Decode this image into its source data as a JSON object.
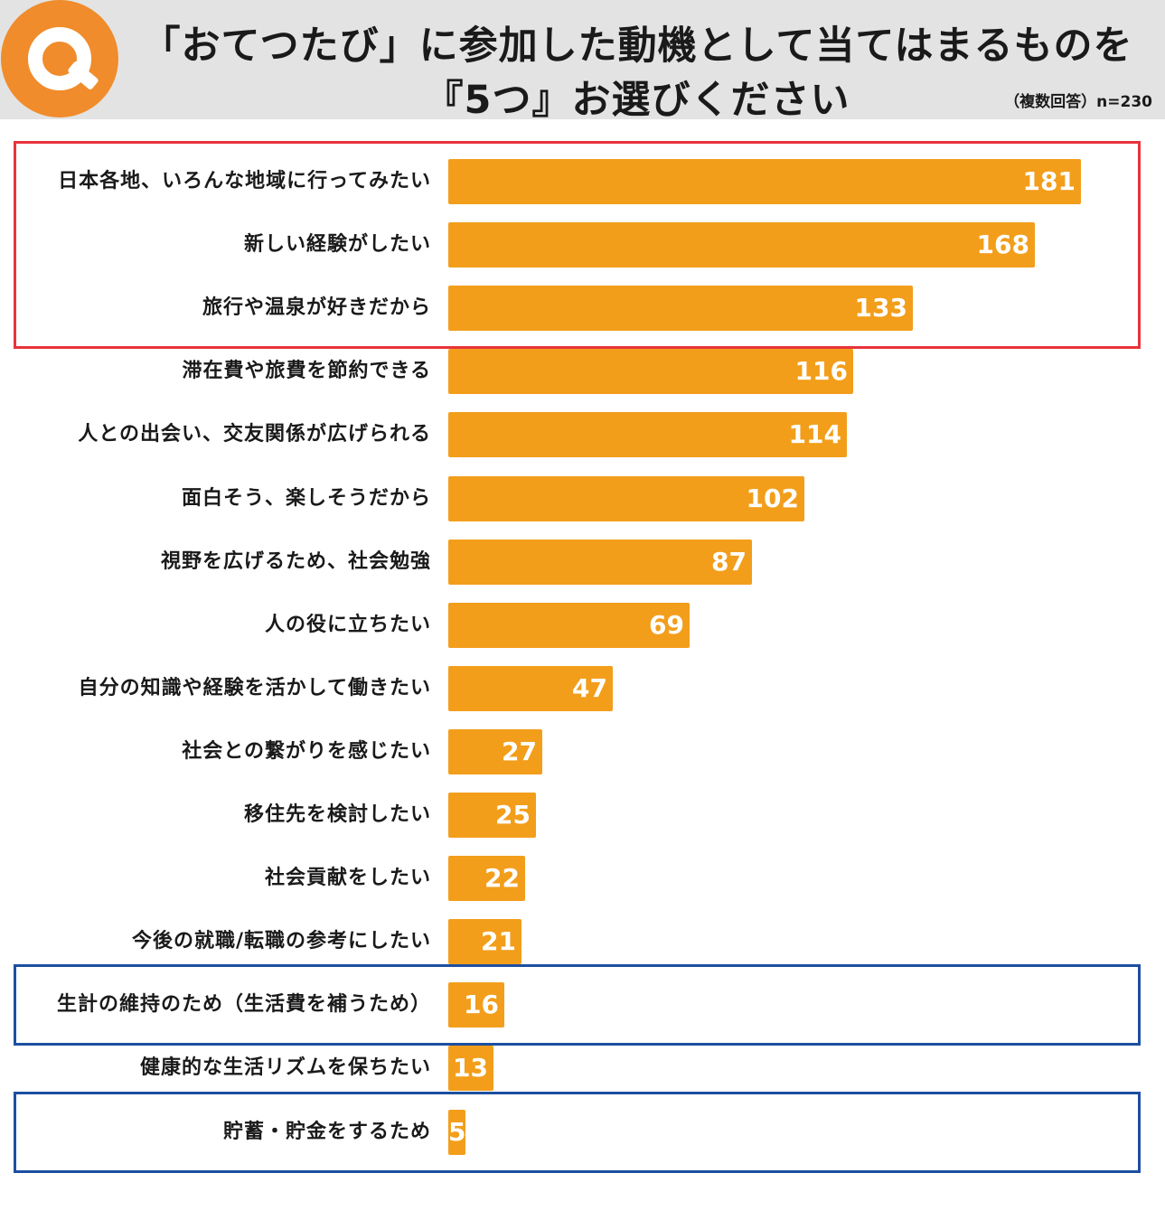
{
  "header": {
    "q_badge": "Q",
    "title_line1": "「おてつたび」に参加した動機として当てはまるものを",
    "title_line2": "『5つ』お選びください",
    "note": "（複数回答）n=230",
    "badge_color": "#f08c2b"
  },
  "chart_data": {
    "type": "bar",
    "orientation": "horizontal",
    "categories": [
      "日本各地、いろんな地域に行ってみたい",
      "新しい経験がしたい",
      "旅行や温泉が好きだから",
      "滞在費や旅費を節約できる",
      "人との出会い、交友関係が広げられる",
      "面白そう、楽しそうだから",
      "視野を広げるため、社会勉強",
      "人の役に立ちたい",
      "自分の知識や経験を活かして働きたい",
      "社会との繋がりを感じたい",
      "移住先を検討したい",
      "社会貢献をしたい",
      "今後の就職/転職の参考にしたい",
      "生計の維持のため（生活費を補うため）",
      "健康的な生活リズムを保ちたい",
      "貯蓄・貯金をするため"
    ],
    "values": [
      181,
      168,
      133,
      116,
      114,
      102,
      87,
      69,
      47,
      27,
      25,
      22,
      21,
      16,
      13,
      5
    ],
    "value_labels": [
      "181",
      "168",
      "133",
      "116",
      "114",
      "102",
      "87",
      "69",
      "47",
      "27",
      "25",
      "22",
      "21",
      "16",
      "13",
      "5"
    ],
    "xlim": [
      0,
      190
    ],
    "grid": false,
    "legend": "none",
    "bar_color": "#f29e1b",
    "highlights": [
      {
        "color": "#e8333b",
        "rows": [
          0,
          1,
          2
        ]
      },
      {
        "color": "#1d4fa0",
        "rows": [
          13
        ]
      },
      {
        "color": "#1d4fa0",
        "rows": [
          15
        ]
      }
    ]
  }
}
